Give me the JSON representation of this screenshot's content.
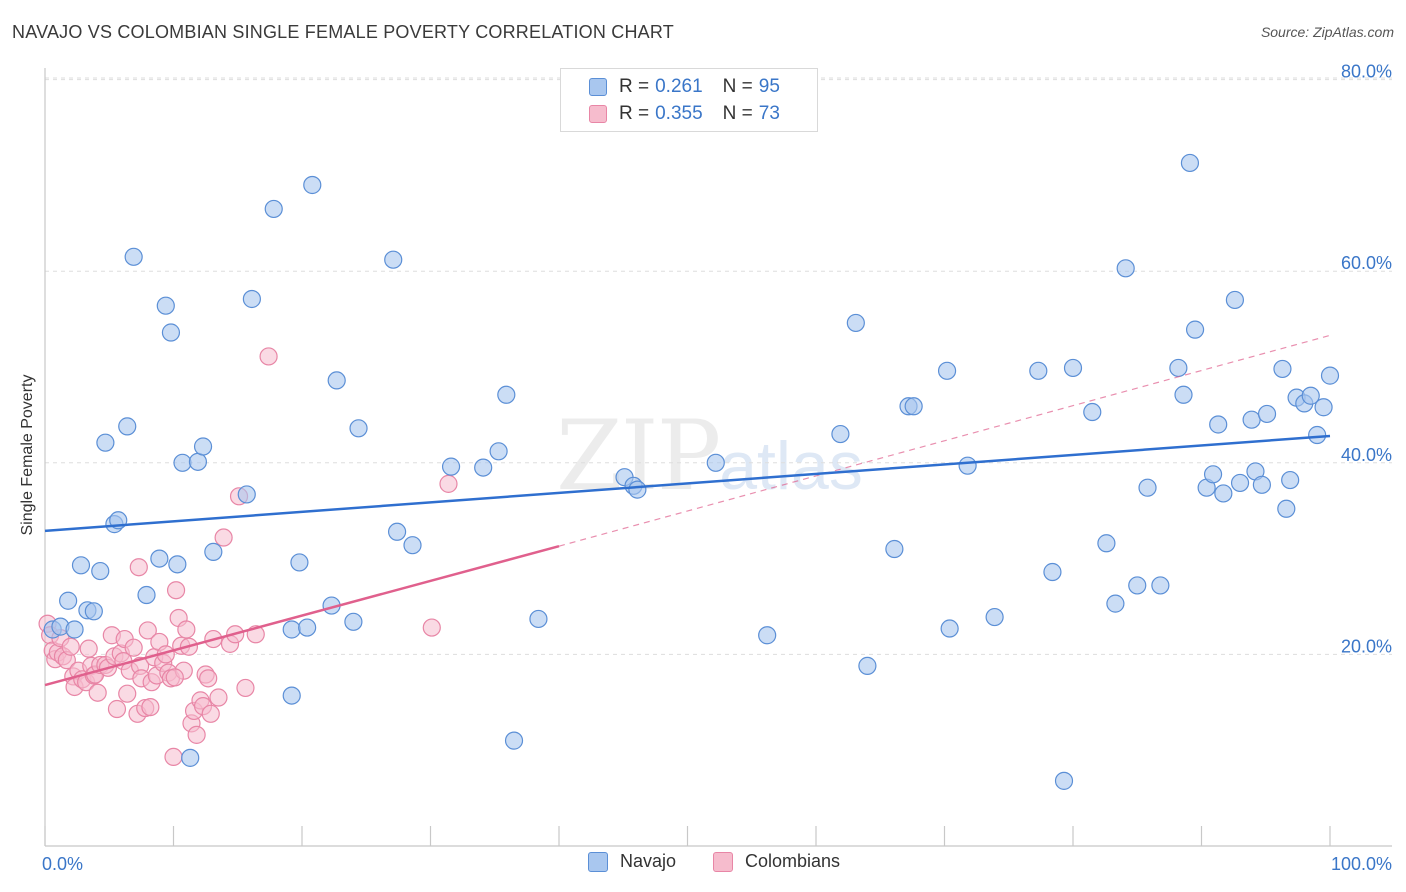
{
  "title": "NAVAJO VS COLOMBIAN SINGLE FEMALE POVERTY CORRELATION CHART",
  "source": "Source: ZipAtlas.com",
  "watermark": {
    "zip": "ZIP",
    "atlas": "atlas"
  },
  "legend_top": [
    {
      "r_label": "R =",
      "r_value": "0.261",
      "n_label": "N =",
      "n_value": "95"
    },
    {
      "r_label": "R =",
      "r_value": "0.355",
      "n_label": "N =",
      "n_value": "73"
    }
  ],
  "legend_bottom": [
    "Navajo",
    "Colombians"
  ],
  "colors": {
    "navajo_fill": "#a9c7ef",
    "navajo_stroke": "#5b8fd6",
    "navajo_line": "#2f6fcf",
    "colombian_fill": "#f6bccd",
    "colombian_stroke": "#e886a6",
    "colombian_line": "#e0608d",
    "axis_text": "#3a76c8",
    "grid": "#dddddd"
  },
  "chart_data": {
    "type": "scatter",
    "title": "NAVAJO VS COLOMBIAN SINGLE FEMALE POVERTY CORRELATION CHART",
    "xlabel": "",
    "ylabel": "Single Female Poverty",
    "xlim": [
      0,
      100
    ],
    "ylim": [
      0,
      82
    ],
    "x_tick_labels": [
      "0.0%",
      "100.0%"
    ],
    "y_ticks": [
      20,
      40,
      60,
      80
    ],
    "y_tick_labels": [
      "20.0%",
      "40.0%",
      "60.0%",
      "80.0%"
    ],
    "series": [
      {
        "name": "Navajo",
        "R": 0.261,
        "N": 95,
        "trend": {
          "x": [
            0,
            100
          ],
          "y": [
            32.9,
            42.8
          ]
        },
        "points": [
          [
            0.6,
            22.6
          ],
          [
            1.2,
            22.9
          ],
          [
            1.8,
            25.6
          ],
          [
            2.3,
            22.6
          ],
          [
            2.8,
            29.3
          ],
          [
            3.3,
            24.6
          ],
          [
            3.8,
            24.5
          ],
          [
            4.3,
            28.7
          ],
          [
            4.7,
            42.1
          ],
          [
            5.4,
            33.6
          ],
          [
            5.7,
            34.0
          ],
          [
            6.4,
            43.8
          ],
          [
            6.9,
            61.5
          ],
          [
            7.9,
            26.2
          ],
          [
            8.9,
            30.0
          ],
          [
            9.4,
            56.4
          ],
          [
            9.8,
            53.6
          ],
          [
            10.3,
            29.4
          ],
          [
            10.7,
            40.0
          ],
          [
            11.3,
            9.2
          ],
          [
            11.9,
            40.1
          ],
          [
            12.3,
            41.7
          ],
          [
            13.1,
            30.7
          ],
          [
            15.7,
            36.7
          ],
          [
            16.1,
            57.1
          ],
          [
            17.8,
            66.5
          ],
          [
            19.2,
            22.6
          ],
          [
            19.2,
            15.7
          ],
          [
            19.8,
            29.6
          ],
          [
            20.4,
            22.8
          ],
          [
            20.8,
            69.0
          ],
          [
            22.3,
            25.1
          ],
          [
            22.7,
            48.6
          ],
          [
            24.0,
            23.4
          ],
          [
            24.4,
            43.6
          ],
          [
            27.1,
            61.2
          ],
          [
            27.4,
            32.8
          ],
          [
            28.6,
            31.4
          ],
          [
            31.6,
            39.6
          ],
          [
            34.1,
            39.5
          ],
          [
            35.3,
            41.2
          ],
          [
            35.9,
            47.1
          ],
          [
            36.5,
            11.0
          ],
          [
            38.4,
            23.7
          ],
          [
            45.1,
            38.5
          ],
          [
            45.8,
            37.6
          ],
          [
            46.1,
            37.2
          ],
          [
            52.2,
            40.0
          ],
          [
            56.2,
            22.0
          ],
          [
            61.9,
            43.0
          ],
          [
            63.1,
            54.6
          ],
          [
            64.0,
            18.8
          ],
          [
            66.1,
            31.0
          ],
          [
            67.2,
            45.9
          ],
          [
            67.6,
            45.9
          ],
          [
            70.2,
            49.6
          ],
          [
            70.4,
            22.7
          ],
          [
            71.8,
            39.7
          ],
          [
            73.9,
            23.9
          ],
          [
            77.3,
            49.6
          ],
          [
            78.4,
            28.6
          ],
          [
            79.3,
            6.8
          ],
          [
            80.0,
            49.9
          ],
          [
            81.5,
            45.3
          ],
          [
            82.6,
            31.6
          ],
          [
            83.3,
            25.3
          ],
          [
            84.1,
            60.3
          ],
          [
            85.0,
            27.2
          ],
          [
            85.8,
            37.4
          ],
          [
            86.8,
            27.2
          ],
          [
            88.2,
            49.9
          ],
          [
            88.6,
            47.1
          ],
          [
            89.1,
            71.3
          ],
          [
            89.5,
            53.9
          ],
          [
            90.4,
            37.4
          ],
          [
            90.9,
            38.8
          ],
          [
            91.3,
            44.0
          ],
          [
            91.7,
            36.8
          ],
          [
            92.6,
            57.0
          ],
          [
            93.0,
            37.9
          ],
          [
            93.9,
            44.5
          ],
          [
            94.2,
            39.1
          ],
          [
            94.7,
            37.7
          ],
          [
            95.1,
            45.1
          ],
          [
            96.3,
            49.8
          ],
          [
            96.6,
            35.2
          ],
          [
            96.9,
            38.2
          ],
          [
            97.4,
            46.8
          ],
          [
            98.0,
            46.2
          ],
          [
            98.5,
            47.0
          ],
          [
            99.0,
            42.9
          ],
          [
            99.5,
            45.8
          ],
          [
            100.0,
            49.1
          ]
        ]
      },
      {
        "name": "Colombians",
        "R": 0.355,
        "N": 73,
        "trend": {
          "x": [
            0,
            40
          ],
          "y": [
            16.8,
            31.3
          ]
        },
        "trend_extended": {
          "x": [
            40,
            100
          ],
          "y": [
            31.3,
            53.3
          ]
        },
        "points": [
          [
            0.2,
            23.2
          ],
          [
            0.4,
            22.0
          ],
          [
            0.6,
            20.4
          ],
          [
            0.8,
            19.5
          ],
          [
            1.0,
            20.2
          ],
          [
            1.2,
            21.7
          ],
          [
            1.4,
            19.8
          ],
          [
            1.7,
            19.4
          ],
          [
            2.0,
            20.8
          ],
          [
            2.2,
            17.7
          ],
          [
            2.3,
            16.6
          ],
          [
            2.6,
            18.3
          ],
          [
            2.9,
            17.4
          ],
          [
            3.2,
            17.1
          ],
          [
            3.4,
            20.6
          ],
          [
            3.6,
            18.8
          ],
          [
            3.8,
            17.8
          ],
          [
            3.9,
            17.9
          ],
          [
            4.1,
            16.0
          ],
          [
            4.3,
            18.9
          ],
          [
            4.7,
            18.9
          ],
          [
            4.9,
            18.6
          ],
          [
            5.2,
            22.0
          ],
          [
            5.4,
            19.8
          ],
          [
            5.6,
            14.3
          ],
          [
            5.9,
            20.1
          ],
          [
            6.1,
            19.3
          ],
          [
            6.2,
            21.6
          ],
          [
            6.4,
            15.9
          ],
          [
            6.6,
            18.3
          ],
          [
            6.9,
            20.7
          ],
          [
            7.2,
            13.8
          ],
          [
            7.4,
            18.8
          ],
          [
            7.5,
            17.5
          ],
          [
            7.8,
            14.4
          ],
          [
            8.0,
            22.5
          ],
          [
            8.2,
            14.5
          ],
          [
            8.3,
            17.1
          ],
          [
            8.5,
            19.7
          ],
          [
            8.7,
            17.8
          ],
          [
            8.9,
            21.3
          ],
          [
            9.2,
            19.1
          ],
          [
            9.4,
            20.0
          ],
          [
            9.6,
            18.1
          ],
          [
            9.8,
            17.5
          ],
          [
            10.0,
            9.3
          ],
          [
            10.2,
            26.7
          ],
          [
            10.4,
            23.8
          ],
          [
            10.6,
            20.9
          ],
          [
            10.8,
            18.3
          ],
          [
            11.0,
            22.6
          ],
          [
            11.2,
            20.8
          ],
          [
            11.4,
            12.8
          ],
          [
            11.6,
            14.1
          ],
          [
            11.8,
            11.6
          ],
          [
            12.1,
            15.2
          ],
          [
            12.3,
            14.6
          ],
          [
            12.5,
            17.9
          ],
          [
            12.7,
            17.5
          ],
          [
            12.9,
            13.8
          ],
          [
            13.1,
            21.6
          ],
          [
            13.5,
            15.5
          ],
          [
            13.9,
            32.2
          ],
          [
            14.4,
            21.1
          ],
          [
            14.8,
            22.1
          ],
          [
            15.1,
            36.5
          ],
          [
            15.6,
            16.5
          ],
          [
            16.4,
            22.1
          ],
          [
            17.4,
            51.1
          ],
          [
            7.3,
            29.1
          ],
          [
            10.1,
            17.6
          ],
          [
            31.4,
            37.8
          ],
          [
            30.1,
            22.8
          ]
        ]
      }
    ]
  }
}
